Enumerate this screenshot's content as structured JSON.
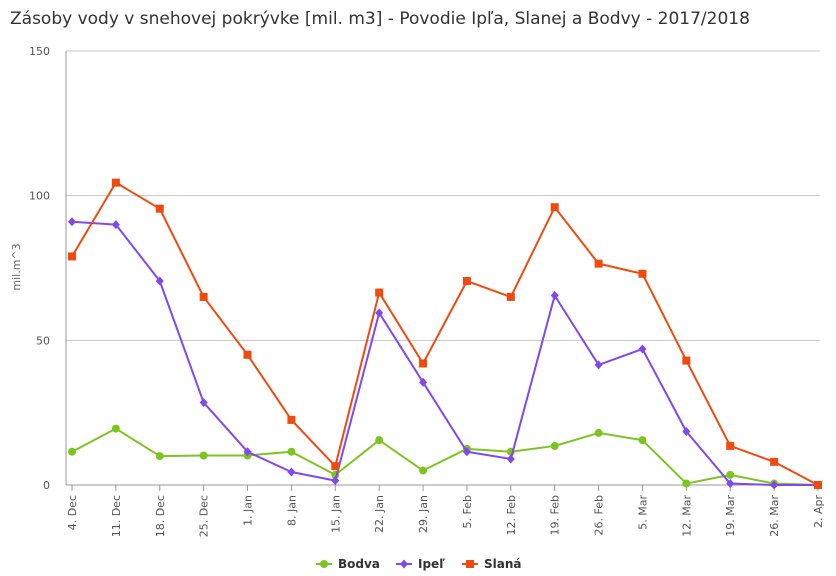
{
  "chart_data": {
    "type": "line",
    "title": "Zásoby vody v snehovej pokrývke [mil. m3] - Povodie Ipľa, Slanej a Bodvy - 2017/2018",
    "ylabel": "mil.m^3",
    "xlabel": "",
    "ylim": [
      0,
      150
    ],
    "yticks": [
      0,
      50,
      100,
      150
    ],
    "grid": true,
    "legend_position": "bottom-center",
    "categories": [
      "4. Dec",
      "11. Dec",
      "18. Dec",
      "25. Dec",
      "1. Jan",
      "8. Jan",
      "15. Jan",
      "22. Jan",
      "29. Jan",
      "5. Feb",
      "12. Feb",
      "19. Feb",
      "26. Feb",
      "5. Mar",
      "12. Mar",
      "19. Mar",
      "26. Mar",
      "2. Apr"
    ],
    "series": [
      {
        "name": "Bodva",
        "color": "#7cc520",
        "marker": "circle",
        "values": [
          11.5,
          19.5,
          10,
          10.2,
          10.2,
          11.5,
          3.5,
          15.5,
          5,
          12.5,
          11.5,
          13.5,
          18,
          15.5,
          0.5,
          3.5,
          0.5,
          0
        ]
      },
      {
        "name": "Ipeľ",
        "color": "#8248f0",
        "marker": "diamond",
        "values": [
          91,
          90,
          70.5,
          28.5,
          11.5,
          4.5,
          1.5,
          59.5,
          35.5,
          11.5,
          9,
          65.5,
          41.5,
          47,
          18.5,
          0.5,
          0,
          0
        ]
      },
      {
        "name": "Slaná",
        "color": "#f14a0f",
        "marker": "square",
        "values": [
          79,
          104.5,
          95.5,
          65,
          45,
          22.5,
          6.5,
          66.5,
          42,
          70.5,
          65,
          96,
          76.5,
          73,
          43,
          13.5,
          8,
          0
        ]
      }
    ]
  }
}
